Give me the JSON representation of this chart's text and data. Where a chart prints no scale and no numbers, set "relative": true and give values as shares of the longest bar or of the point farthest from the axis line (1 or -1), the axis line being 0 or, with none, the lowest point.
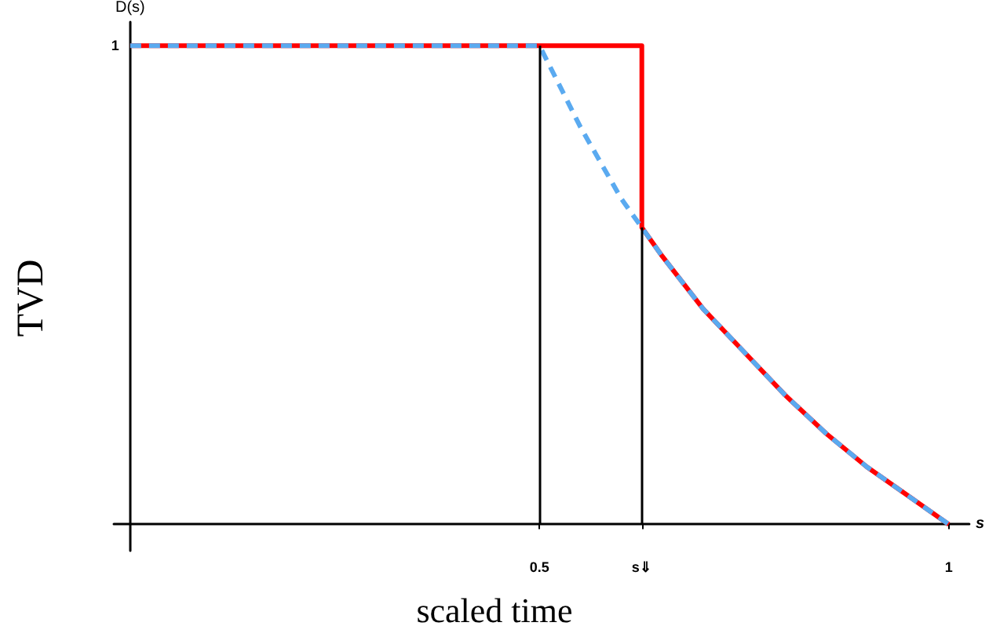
{
  "chart_data": {
    "type": "line",
    "xlabel": "scaled time",
    "ylabel": "TVD",
    "annotations": [
      "D(s)",
      "s",
      {
        "text": "1",
        "x": 0,
        "y": 1
      }
    ],
    "xlim": [
      -0.02,
      1.025
    ],
    "xticks": [
      0.5,
      {
        "value": 0.625,
        "label": "s⇓"
      },
      1
    ],
    "relative": true,
    "line_style": "solid",
    "ref_lines": [
      {
        "axis": "x",
        "value": 0.5,
        "color": "#000000"
      },
      {
        "axis": "x",
        "value": 0.625,
        "color": "#000000"
      }
    ],
    "series": [
      {
        "color": "#ff0000",
        "x": [
          0,
          0.625,
          0.625,
          0.65,
          0.7,
          0.75,
          0.8,
          0.85,
          0.9,
          0.95,
          1
        ],
        "values": [
          1,
          1,
          0.62,
          0.56,
          0.45,
          0.36,
          0.27,
          0.19,
          0.12,
          0.06,
          0
        ]
      },
      {
        "color": "#5aaaf0",
        "line_style": "dashed",
        "x": [
          0,
          0.5,
          0.55,
          0.6,
          0.625,
          0.65,
          0.7,
          0.75,
          0.8,
          0.85,
          0.9,
          0.95,
          1
        ],
        "values": [
          1,
          1,
          0.83,
          0.68,
          0.62,
          0.56,
          0.45,
          0.36,
          0.27,
          0.19,
          0.12,
          0.06,
          0
        ]
      }
    ]
  }
}
